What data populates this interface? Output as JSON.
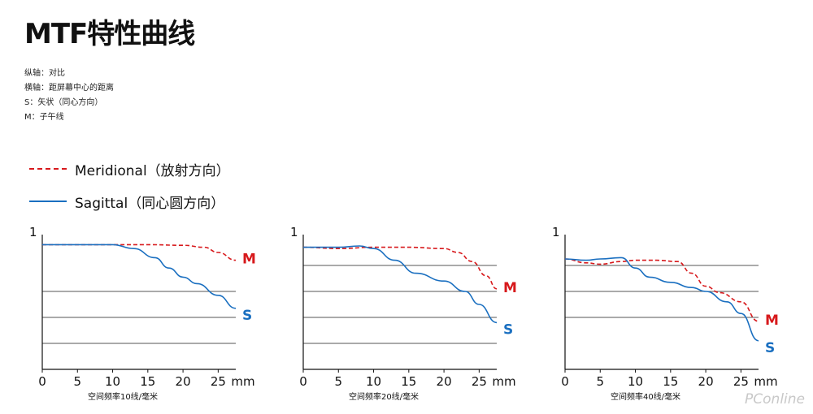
{
  "header": {
    "title": "MTF特性曲线",
    "notes": [
      "纵轴：对比",
      "横轴：距屏幕中心的距离",
      "S：矢状（同心方向）",
      "M：子午线"
    ]
  },
  "legend": {
    "meridional": "Meridional（放射方向）",
    "sagittal": "Sagittal（同心圆方向）"
  },
  "colors": {
    "meridional": "#d7191c",
    "sagittal": "#1a6fc0",
    "grid": "#555555",
    "axis": "#111111"
  },
  "watermark": "PConline",
  "chart_data": [
    {
      "type": "line",
      "xlabel": "空间频率10线/毫米",
      "xunit": "mm",
      "ytick": "1",
      "xticks": [
        0,
        5,
        10,
        15,
        20,
        25
      ],
      "xlim": [
        0,
        27.5
      ],
      "ylim": [
        0,
        1
      ],
      "grid_y": [
        0.2,
        0.4,
        0.6
      ],
      "series": [
        {
          "name": "M",
          "style": "dashed",
          "x": [
            0,
            5,
            10,
            15,
            20,
            23,
            25,
            27.5
          ],
          "y": [
            0.96,
            0.96,
            0.96,
            0.96,
            0.955,
            0.94,
            0.9,
            0.84
          ]
        },
        {
          "name": "S",
          "style": "solid",
          "x": [
            0,
            5,
            10,
            13,
            16,
            18,
            20,
            22,
            25,
            27.5
          ],
          "y": [
            0.96,
            0.96,
            0.96,
            0.93,
            0.86,
            0.78,
            0.71,
            0.66,
            0.57,
            0.47
          ]
        }
      ]
    },
    {
      "type": "line",
      "xlabel": "空间频率20线/毫米",
      "xunit": "mm",
      "ytick": "1",
      "xticks": [
        0,
        5,
        10,
        15,
        20,
        25
      ],
      "xlim": [
        0,
        27.5
      ],
      "ylim": [
        0,
        1
      ],
      "grid_y": [
        0.2,
        0.4,
        0.6,
        0.8
      ],
      "series": [
        {
          "name": "M",
          "style": "dashed",
          "x": [
            0,
            5,
            10,
            15,
            20,
            22,
            24,
            26,
            27.5
          ],
          "y": [
            0.94,
            0.93,
            0.94,
            0.94,
            0.93,
            0.9,
            0.83,
            0.72,
            0.62
          ]
        },
        {
          "name": "S",
          "style": "solid",
          "x": [
            0,
            5,
            8,
            10,
            13,
            16,
            20,
            23,
            25,
            27.5
          ],
          "y": [
            0.94,
            0.94,
            0.95,
            0.93,
            0.84,
            0.74,
            0.68,
            0.6,
            0.5,
            0.36
          ]
        }
      ]
    },
    {
      "type": "line",
      "xlabel": "空间频率40线/毫米",
      "xunit": "mm",
      "ytick": "1",
      "xticks": [
        0,
        5,
        10,
        15,
        20,
        25
      ],
      "xlim": [
        0,
        27.5
      ],
      "ylim": [
        0,
        1
      ],
      "grid_y": [
        0.4,
        0.6,
        0.8
      ],
      "series": [
        {
          "name": "M",
          "style": "dashed",
          "x": [
            0,
            3,
            5,
            8,
            10,
            13,
            16,
            18,
            20,
            22,
            25,
            27.5
          ],
          "y": [
            0.85,
            0.82,
            0.81,
            0.83,
            0.84,
            0.84,
            0.83,
            0.74,
            0.64,
            0.59,
            0.52,
            0.37
          ]
        },
        {
          "name": "S",
          "style": "solid",
          "x": [
            0,
            3,
            5,
            8,
            10,
            12,
            15,
            18,
            20,
            23,
            25,
            27.5
          ],
          "y": [
            0.85,
            0.84,
            0.85,
            0.86,
            0.78,
            0.71,
            0.67,
            0.63,
            0.6,
            0.52,
            0.43,
            0.22
          ]
        }
      ]
    }
  ]
}
